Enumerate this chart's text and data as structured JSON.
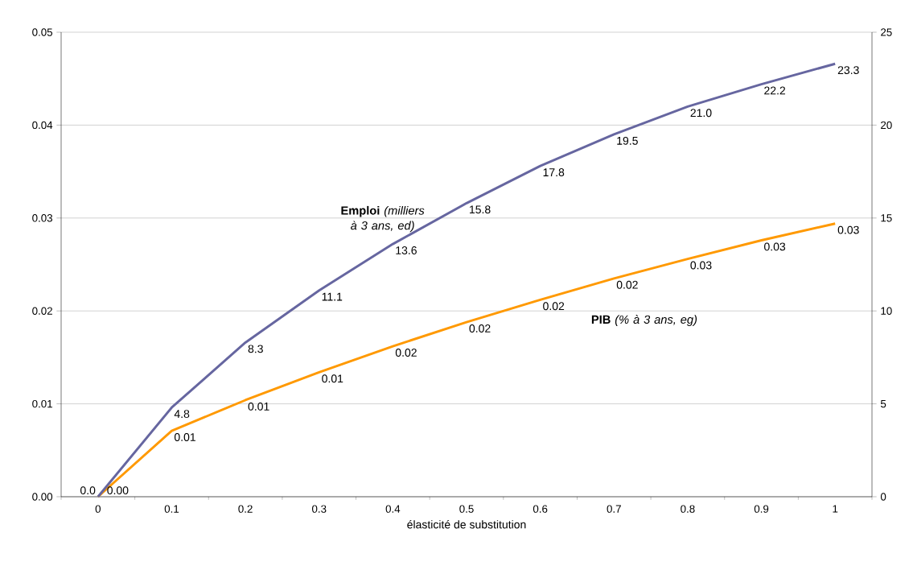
{
  "chart_data": {
    "type": "line",
    "xlabel": "élasticité de substitution",
    "categories": [
      "0",
      "0.1",
      "0.2",
      "0.3",
      "0.4",
      "0.5",
      "0.6",
      "0.7",
      "0.8",
      "0.9",
      "1"
    ],
    "series": [
      {
        "name": "**Emploi** *(milliers à 3 ans, ed)*",
        "color": "#6666a0",
        "axis": "y2",
        "values": [
          0,
          4.8,
          8.3,
          11.1,
          13.6,
          15.8,
          17.8,
          19.5,
          21.0,
          22.2,
          23.3
        ],
        "value_labels": [
          "0.0",
          "4.8",
          "8.3",
          "11.1",
          "13.6",
          "15.8",
          "17.8",
          "19.5",
          "21.0",
          "22.2",
          "23.3"
        ]
      },
      {
        "name": "**PIB** *(% à 3 ans, eg)*",
        "color": "#ff9900",
        "values": [
          0,
          0.0071,
          0.0104,
          0.0134,
          0.0162,
          0.0188,
          0.0212,
          0.0235,
          0.0256,
          0.0276,
          0.0294
        ],
        "value_labels": [
          "0.00",
          "0.01",
          "0.01",
          "0.01",
          "0.02",
          "0.02",
          "0.02",
          "0.02",
          "0.03",
          "0.03",
          "0.03"
        ]
      }
    ],
    "ylim": [
      0,
      0.05
    ],
    "yticks": [
      {
        "value": 0,
        "label": "0.00"
      },
      {
        "value": 0.01,
        "label": "0.01"
      },
      {
        "value": 0.02,
        "label": "0.02"
      },
      {
        "value": 0.03,
        "label": "0.03"
      },
      {
        "value": 0.04,
        "label": "0.04"
      },
      {
        "value": 0.05,
        "label": "0.05"
      }
    ],
    "y2lim": [
      0,
      25
    ],
    "y2ticks": [
      0,
      5,
      10,
      15,
      20,
      25
    ],
    "grid": "y",
    "marker": "none",
    "line_style": "solid"
  }
}
